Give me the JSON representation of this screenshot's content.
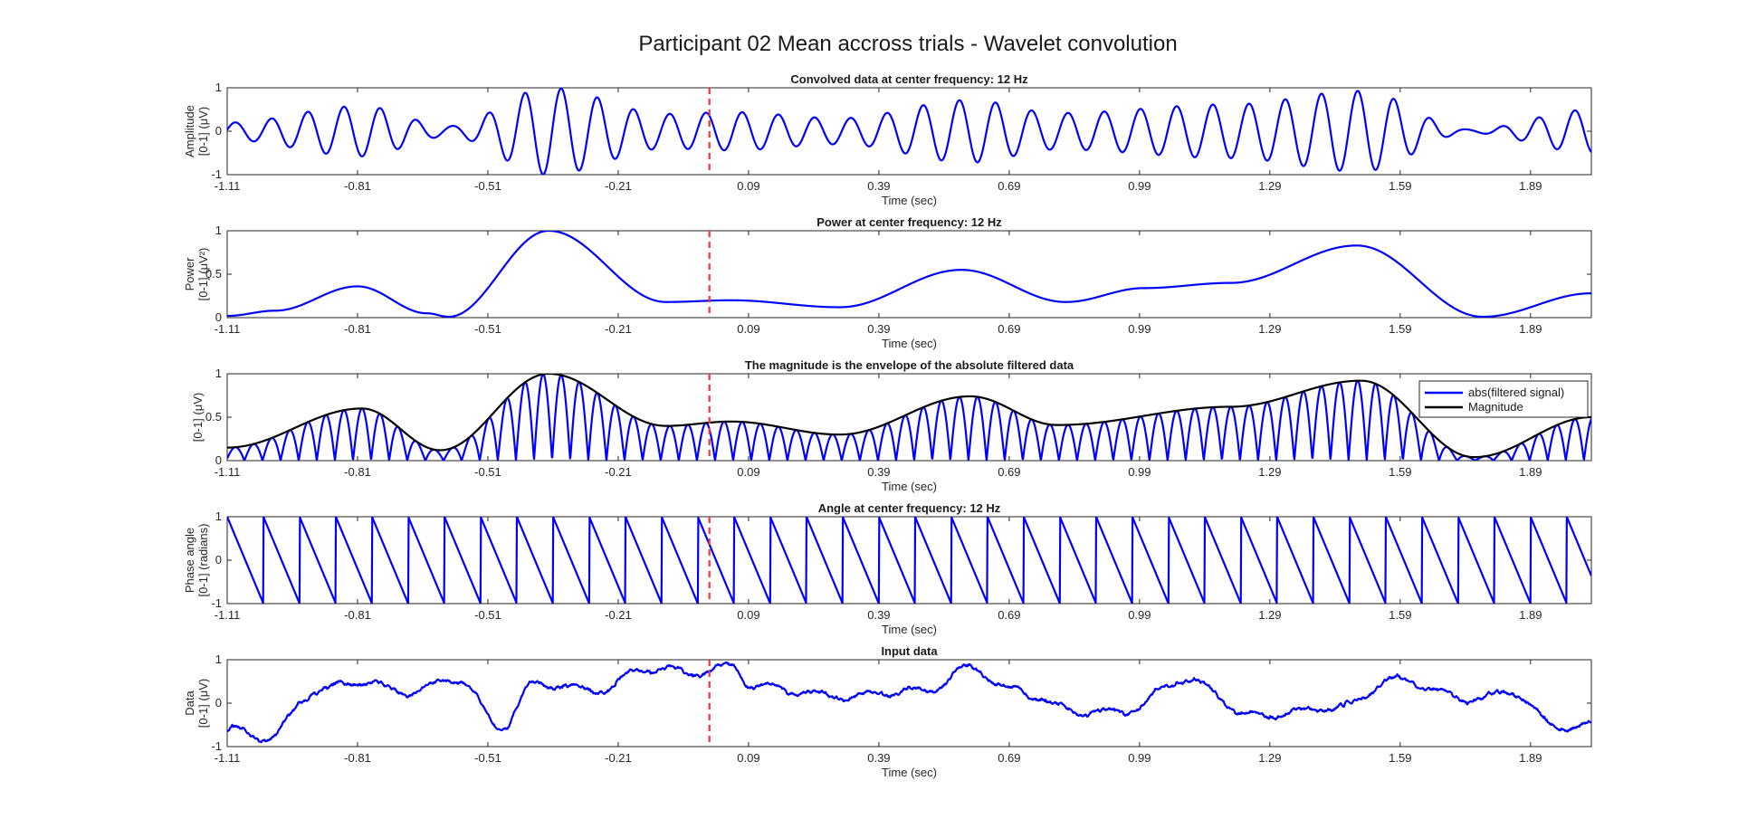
{
  "figure": {
    "title": "Participant 02 Mean accross trials - Wavelet convolution"
  },
  "colors": {
    "signal": "#0000ff",
    "magnitude": "#000000",
    "marker": "#ff3333",
    "axis": "#262626"
  },
  "chart_data": [
    {
      "type": "line",
      "title": "Convolved data at center frequency: 12 Hz",
      "xlabel": "Time (sec)",
      "ylabel": [
        "Amplitude",
        "[0-1] (μV)"
      ],
      "xlim": [
        -1.11,
        2.03
      ],
      "ylim": [
        -1,
        1
      ],
      "xticks": [
        "-1.11",
        "-0.81",
        "-0.51",
        "-0.21",
        "0.09",
        "0.39",
        "0.69",
        "0.99",
        "1.29",
        "1.59",
        "1.89"
      ],
      "yticks": [
        "-1",
        "0",
        "1"
      ],
      "marker_x": 0.0,
      "envelope": [
        [
          -1.11,
          0.2
        ],
        [
          -0.8,
          0.58
        ],
        [
          -0.6,
          0.12
        ],
        [
          -0.37,
          1.0
        ],
        [
          -0.1,
          0.4
        ],
        [
          0.05,
          0.44
        ],
        [
          0.3,
          0.3
        ],
        [
          0.6,
          0.72
        ],
        [
          0.8,
          0.42
        ],
        [
          1.2,
          0.62
        ],
        [
          1.5,
          0.93
        ],
        [
          1.75,
          0.04
        ],
        [
          2.03,
          0.5
        ]
      ],
      "frequency_hz": 12,
      "series": [
        {
          "name": "",
          "style": "oscillation"
        }
      ]
    },
    {
      "type": "line",
      "title": "Power at center frequency: 12 Hz",
      "xlabel": "Time (sec)",
      "ylabel": [
        "Power",
        "[0-1] (μV²)"
      ],
      "xlim": [
        -1.11,
        2.03
      ],
      "ylim": [
        0,
        1
      ],
      "xticks": [
        "-1.11",
        "-0.81",
        "-0.51",
        "-0.21",
        "0.09",
        "0.39",
        "0.69",
        "0.99",
        "1.29",
        "1.59",
        "1.89"
      ],
      "yticks": [
        "0",
        "0.5",
        "1"
      ],
      "marker_x": 0.0,
      "points": [
        [
          -1.11,
          0.02
        ],
        [
          -1.0,
          0.08
        ],
        [
          -0.81,
          0.36
        ],
        [
          -0.65,
          0.05
        ],
        [
          -0.6,
          0.01
        ],
        [
          -0.37,
          1.0
        ],
        [
          -0.1,
          0.18
        ],
        [
          0.05,
          0.2
        ],
        [
          0.3,
          0.12
        ],
        [
          0.58,
          0.55
        ],
        [
          0.82,
          0.18
        ],
        [
          1.0,
          0.34
        ],
        [
          1.2,
          0.4
        ],
        [
          1.49,
          0.83
        ],
        [
          1.78,
          0.01
        ],
        [
          2.03,
          0.28
        ]
      ],
      "series": [
        {
          "name": "",
          "style": "smooth"
        }
      ]
    },
    {
      "type": "line",
      "title": "The magnitude is the envelope of the absolute filtered data",
      "xlabel": "Time (sec)",
      "ylabel": [
        "[0-1] (μV)"
      ],
      "xlim": [
        -1.11,
        2.03
      ],
      "ylim": [
        0,
        1
      ],
      "xticks": [
        "-1.11",
        "-0.81",
        "-0.51",
        "-0.21",
        "0.09",
        "0.39",
        "0.69",
        "0.99",
        "1.29",
        "1.59",
        "1.89"
      ],
      "yticks": [
        "0",
        "0.5",
        "1"
      ],
      "marker_x": 0.0,
      "envelope": [
        [
          -1.11,
          0.15
        ],
        [
          -0.8,
          0.6
        ],
        [
          -0.62,
          0.12
        ],
        [
          -0.37,
          1.0
        ],
        [
          -0.1,
          0.4
        ],
        [
          0.05,
          0.45
        ],
        [
          0.3,
          0.3
        ],
        [
          0.6,
          0.74
        ],
        [
          0.8,
          0.41
        ],
        [
          1.2,
          0.62
        ],
        [
          1.5,
          0.92
        ],
        [
          1.76,
          0.04
        ],
        [
          2.03,
          0.5
        ]
      ],
      "frequency_hz": 12,
      "legend": {
        "position": "top-right",
        "entries": [
          {
            "label": "abs(filtered signal)",
            "color": "#0000ff"
          },
          {
            "label": "Magnitude",
            "color": "#000000"
          }
        ]
      },
      "series": [
        {
          "name": "abs(filtered signal)",
          "style": "rectified"
        },
        {
          "name": "Magnitude",
          "style": "envelope"
        }
      ]
    },
    {
      "type": "line",
      "title": "Angle at center frequency: 12 Hz",
      "xlabel": "Time (sec)",
      "ylabel": [
        "Phase angle",
        "[0-1] (radians)"
      ],
      "xlim": [
        -1.11,
        2.03
      ],
      "ylim": [
        -1,
        1
      ],
      "xticks": [
        "-1.11",
        "-0.81",
        "-0.51",
        "-0.21",
        "0.09",
        "0.39",
        "0.69",
        "0.99",
        "1.29",
        "1.59",
        "1.89"
      ],
      "yticks": [
        "-1",
        "0",
        "1"
      ],
      "marker_x": 0.0,
      "frequency_hz": 12,
      "series": [
        {
          "name": "",
          "style": "sawtooth"
        }
      ]
    },
    {
      "type": "line",
      "title": "Input data",
      "xlabel": "Time (sec)",
      "ylabel": [
        "Data",
        "[0-1] (μV)"
      ],
      "xlim": [
        -1.11,
        2.03
      ],
      "ylim": [
        -1,
        1
      ],
      "xticks": [
        "-1.11",
        "-0.81",
        "-0.51",
        "-0.21",
        "0.09",
        "0.39",
        "0.69",
        "0.99",
        "1.29",
        "1.59",
        "1.89"
      ],
      "yticks": [
        "-1",
        "0",
        "1"
      ],
      "marker_x": 0.0,
      "trend": [
        [
          -1.11,
          -0.6
        ],
        [
          -1.02,
          -0.8
        ],
        [
          -0.9,
          0.3
        ],
        [
          -0.8,
          0.5
        ],
        [
          -0.7,
          0.25
        ],
        [
          -0.58,
          0.55
        ],
        [
          -0.48,
          -0.55
        ],
        [
          -0.4,
          0.45
        ],
        [
          -0.25,
          0.3
        ],
        [
          -0.15,
          0.8
        ],
        [
          -0.02,
          0.7
        ],
        [
          0.05,
          0.85
        ],
        [
          0.1,
          0.4
        ],
        [
          0.3,
          0.15
        ],
        [
          0.5,
          0.3
        ],
        [
          0.6,
          0.8
        ],
        [
          0.7,
          0.3
        ],
        [
          0.85,
          -0.2
        ],
        [
          0.95,
          -0.2
        ],
        [
          1.1,
          0.55
        ],
        [
          1.25,
          -0.3
        ],
        [
          1.45,
          -0.1
        ],
        [
          1.58,
          0.55
        ],
        [
          1.75,
          0.1
        ],
        [
          1.85,
          0.25
        ],
        [
          1.95,
          -0.55
        ],
        [
          2.03,
          -0.5
        ]
      ],
      "series": [
        {
          "name": "",
          "style": "noisy"
        }
      ]
    }
  ]
}
